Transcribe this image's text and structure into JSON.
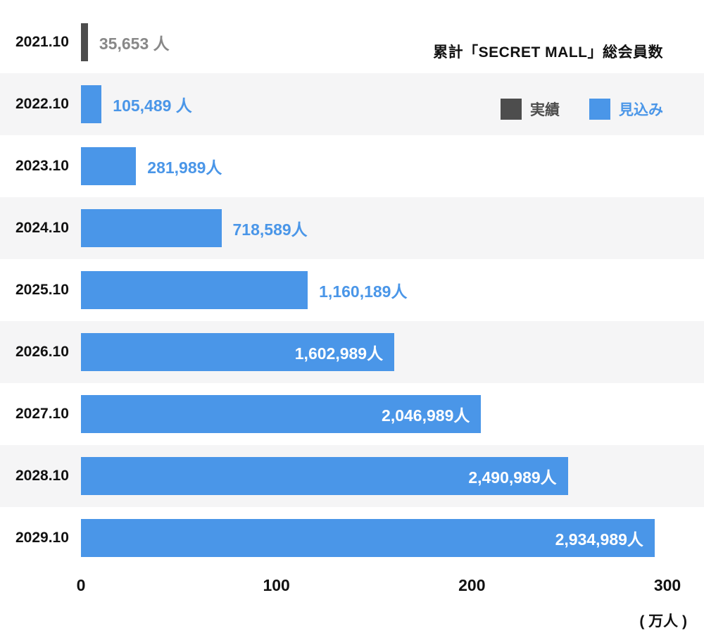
{
  "title": "累計「SECRET MALL」総会員数",
  "legend": {
    "items": [
      {
        "label": "実績",
        "color": "#4d4d4d",
        "text_color": "#4d4d4d"
      },
      {
        "label": "見込み",
        "color": "#4a96e8",
        "text_color": "#4a96e8"
      }
    ]
  },
  "colors": {
    "actual": "#4d4d4d",
    "forecast": "#4a96e8",
    "alt_row_bg": "#f5f5f6",
    "outside_label_actual": "#888888",
    "outside_label_forecast": "#4a96e8",
    "inside_label": "#ffffff",
    "text": "#111111"
  },
  "chart_data": {
    "type": "bar",
    "orientation": "horizontal",
    "title": "累計「SECRET MALL」総会員数",
    "categories": [
      "2021.10",
      "2022.10",
      "2023.10",
      "2024.10",
      "2025.10",
      "2026.10",
      "2027.10",
      "2028.10",
      "2029.10"
    ],
    "values": [
      35653,
      105489,
      281989,
      718589,
      1160189,
      1602989,
      2046989,
      2490989,
      2934989
    ],
    "value_labels": [
      "35,653 人",
      "105,489 人",
      "281,989人",
      "718,589人",
      "1,160,189人",
      "1,602,989人",
      "2,046,989人",
      "2,490,989人",
      "2,934,989人"
    ],
    "series": [
      "actual",
      "forecast",
      "forecast",
      "forecast",
      "forecast",
      "forecast",
      "forecast",
      "forecast",
      "forecast"
    ],
    "label_position": [
      "outside",
      "outside",
      "outside",
      "outside",
      "outside",
      "inside",
      "inside",
      "inside",
      "inside"
    ],
    "xlim": [
      0,
      3000000
    ],
    "x_ticks": [
      {
        "label": "0",
        "value": 0
      },
      {
        "label": "100",
        "value": 1000000
      },
      {
        "label": "200",
        "value": 2000000
      },
      {
        "label": "300",
        "value": 3000000
      }
    ],
    "x_unit": "( 万人 )",
    "legend_entries": [
      "実績",
      "見込み"
    ],
    "legend_position": "top-right",
    "grid": false,
    "zebra_rows": true
  }
}
